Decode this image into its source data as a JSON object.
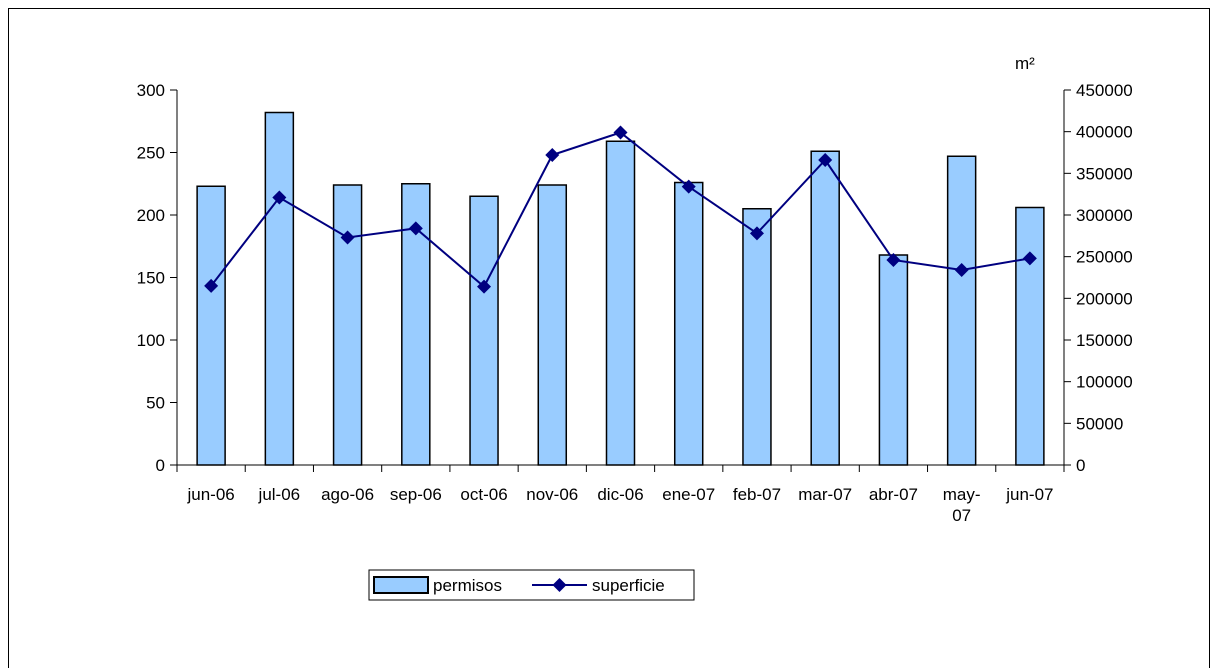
{
  "chart_data": {
    "type": "bar",
    "categories": [
      "jun-06",
      "jul-06",
      "ago-06",
      "sep-06",
      "oct-06",
      "nov-06",
      "dic-06",
      "ene-07",
      "feb-07",
      "mar-07",
      "abr-07",
      "may-07",
      "jun-07"
    ],
    "category_display_lines": [
      [
        "jun-06"
      ],
      [
        "jul-06"
      ],
      [
        "ago-06"
      ],
      [
        "sep-06"
      ],
      [
        "oct-06"
      ],
      [
        "nov-06"
      ],
      [
        "dic-06"
      ],
      [
        "ene-07"
      ],
      [
        "feb-07"
      ],
      [
        "mar-07"
      ],
      [
        "abr-07"
      ],
      [
        "may-",
        "07"
      ],
      [
        "jun-07"
      ]
    ],
    "series": [
      {
        "name": "permisos",
        "type": "bar",
        "axis": "left",
        "values": [
          223,
          282,
          224,
          225,
          215,
          224,
          259,
          226,
          205,
          251,
          168,
          247,
          206
        ]
      },
      {
        "name": "superficie",
        "type": "line",
        "axis": "right",
        "values": [
          215000,
          321000,
          273000,
          284000,
          214000,
          372000,
          399000,
          334000,
          278000,
          366000,
          246000,
          234000,
          248000
        ]
      }
    ],
    "y_left": {
      "min": 0,
      "max": 300,
      "ticks": [
        0,
        50,
        100,
        150,
        200,
        250,
        300
      ]
    },
    "y_right": {
      "min": 0,
      "max": 450000,
      "ticks": [
        0,
        50000,
        100000,
        150000,
        200000,
        250000,
        300000,
        350000,
        400000,
        450000
      ],
      "label": "m²"
    },
    "grid": false,
    "legend_position": "bottom",
    "colors": {
      "bar_fill": "#99ccff",
      "bar_stroke": "#000000",
      "line": "#000080",
      "axis": "#000000"
    }
  }
}
